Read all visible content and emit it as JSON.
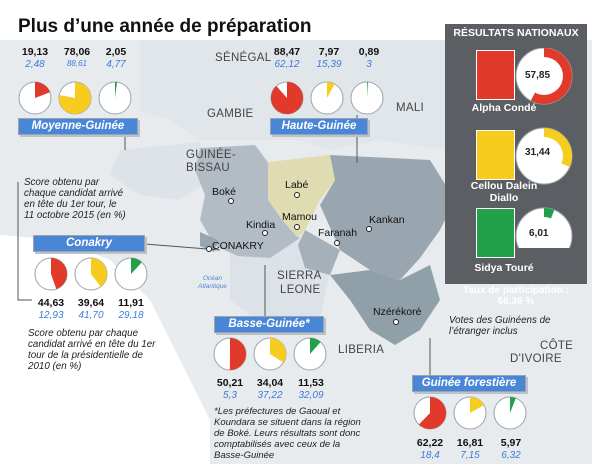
{
  "title": "Plus d’une année de préparation",
  "colors": {
    "red": "#e23a2a",
    "yellow": "#f6cd1f",
    "green": "#23a14a",
    "blue_label": "#4a86d8",
    "results_panel": "#5b5f63"
  },
  "map": {
    "countries": [
      "SÉNÉGAL",
      "MALI",
      "GAMBIE",
      "GUINÉE-",
      "BISSAU",
      "SIERRA",
      "LEONE",
      "LIBERIA",
      "CÔTE",
      "D'IVOIRE"
    ],
    "ocean": [
      "Océan",
      "Atlantique"
    ],
    "cities": [
      "Boké",
      "Labé",
      "Kindia",
      "Mamou",
      "CONAKRY",
      "Faranah",
      "Kankan",
      "Nzérékoré"
    ]
  },
  "regions": [
    {
      "name": "Moyenne-Guinée",
      "scores_2015": [
        "19,13",
        "78,06",
        "2,05"
      ],
      "scores_2010": [
        "2,48",
        "88,61",
        "4,77"
      ],
      "shares": [
        0.1913,
        0.7806,
        0.0205
      ]
    },
    {
      "name": "Haute-Guinée",
      "scores_2015": [
        "88,47",
        "7,97",
        "0,89"
      ],
      "scores_2010": [
        "62,12",
        "15,39",
        "3"
      ],
      "shares": [
        0.8847,
        0.0797,
        0.0089
      ]
    },
    {
      "name": "Conakry",
      "scores_2015": [
        "44,63",
        "39,64",
        "11,91"
      ],
      "scores_2010": [
        "12,93",
        "41,70",
        "29,18"
      ],
      "shares": [
        0.4463,
        0.3964,
        0.1191
      ]
    },
    {
      "name": "Basse-Guinée*",
      "scores_2015": [
        "50,21",
        "34,04",
        "11,53"
      ],
      "scores_2010": [
        "5,3",
        "37,22",
        "32,09"
      ],
      "shares": [
        0.5021,
        0.3404,
        0.1153
      ]
    },
    {
      "name": "Guinée forestière",
      "scores_2015": [
        "62,22",
        "16,81",
        "5,97"
      ],
      "scores_2010": [
        "18,4",
        "7,15",
        "6,32"
      ],
      "shares": [
        0.6222,
        0.1681,
        0.0597
      ]
    }
  ],
  "notes": {
    "note_2015": "Score obtenu par chaque candidat arrivé en tête du 1er tour, le 11 octobre 2015 (en %)",
    "note_2010": "Score obtenu par chaque candidat arrivé en tête du 1er tour de la présidentielle de 2010 (en %)",
    "footnote": "*Les préfectures de Gaoual et Koundara se situent dans la région de Boké. Leurs résultats sont donc comptabilisés avec ceux de la Basse-Guinée",
    "diaspora": "Votes des Guinéens de l’étranger inclus"
  },
  "results": {
    "heading": "RÉSULTATS NATIONAUX",
    "candidates": [
      {
        "name": "Alpha Condé",
        "pct": "57,85",
        "share": 0.5785,
        "color": "#e23a2a"
      },
      {
        "name": "Cellou Dalein Diallo",
        "pct": "31,44",
        "share": 0.3144,
        "color": "#f6cd1f"
      },
      {
        "name": "Sidya Touré",
        "pct": "6,01",
        "share": 0.0601,
        "color": "#23a14a"
      }
    ],
    "participation_label": "Taux de participation :",
    "participation_value": "68,36 %"
  }
}
